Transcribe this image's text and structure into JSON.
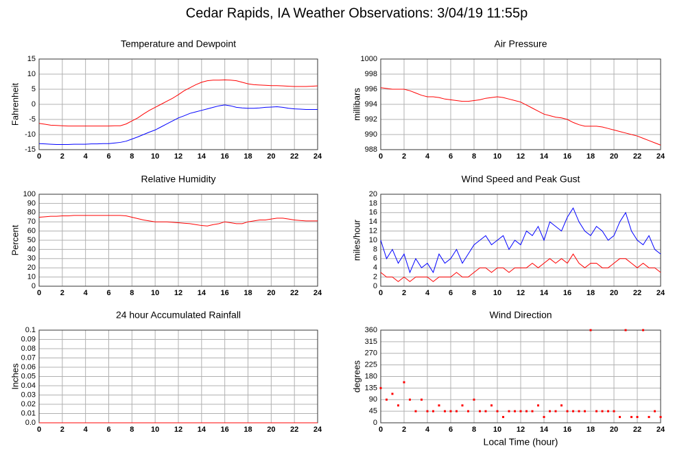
{
  "title": "Cedar Rapids, IA Weather Observations: 3/04/19 11:55p",
  "chart_data": [
    {
      "type": "line",
      "title": "Temperature and Dewpoint",
      "y_label": "Fahrenheit",
      "x": [
        0,
        0.5,
        1,
        1.5,
        2,
        2.5,
        3,
        3.5,
        4,
        4.5,
        5,
        5.5,
        6,
        6.5,
        7,
        7.5,
        8,
        8.5,
        9,
        9.5,
        10,
        10.5,
        11,
        11.5,
        12,
        12.5,
        13,
        13.5,
        14,
        14.5,
        15,
        15.5,
        16,
        16.5,
        17,
        17.5,
        18,
        18.5,
        19,
        19.5,
        20,
        20.5,
        21,
        21.5,
        22,
        22.5,
        23,
        23.5,
        24
      ],
      "series": [
        {
          "color": "#ff0000",
          "values": [
            -6.3,
            -6.6,
            -6.9,
            -7,
            -7.1,
            -7.2,
            -7.2,
            -7.2,
            -7.2,
            -7.2,
            -7.2,
            -7.2,
            -7.2,
            -7.1,
            -7.1,
            -6.5,
            -5.5,
            -4.5,
            -3.2,
            -2,
            -1,
            0,
            1,
            2,
            3.2,
            4.5,
            5.5,
            6.5,
            7.3,
            7.8,
            8,
            8,
            8.1,
            8,
            7.8,
            7.3,
            6.8,
            6.5,
            6.4,
            6.3,
            6.2,
            6.2,
            6.1,
            6,
            5.9,
            5.9,
            5.9,
            6,
            6.1
          ]
        },
        {
          "color": "#0000ff",
          "values": [
            -13,
            -13.1,
            -13.2,
            -13.3,
            -13.3,
            -13.3,
            -13.2,
            -13.2,
            -13.2,
            -13.1,
            -13.1,
            -13,
            -13,
            -12.8,
            -12.6,
            -12.2,
            -11.5,
            -10.8,
            -10,
            -9.2,
            -8.5,
            -7.5,
            -6.5,
            -5.5,
            -4.5,
            -3.8,
            -3,
            -2.5,
            -2,
            -1.5,
            -1,
            -0.5,
            -0.2,
            -0.5,
            -1,
            -1.2,
            -1.3,
            -1.3,
            -1.2,
            -1,
            -0.9,
            -0.8,
            -1,
            -1.3,
            -1.5,
            -1.6,
            -1.7,
            -1.7,
            -1.7
          ]
        }
      ],
      "xlim": [
        0,
        24
      ],
      "xticks": [
        0,
        2,
        4,
        6,
        8,
        10,
        12,
        14,
        16,
        18,
        20,
        22,
        24
      ],
      "ylim": [
        -15,
        15
      ],
      "yticks": [
        -15,
        -10,
        -5,
        0,
        5,
        10,
        15
      ],
      "grid": true
    },
    {
      "type": "line",
      "title": "Air Pressure",
      "y_label": "millibars",
      "x": [
        0,
        0.5,
        1,
        1.5,
        2,
        2.5,
        3,
        3.5,
        4,
        4.5,
        5,
        5.5,
        6,
        6.5,
        7,
        7.5,
        8,
        8.5,
        9,
        9.5,
        10,
        10.5,
        11,
        11.5,
        12,
        12.5,
        13,
        13.5,
        14,
        14.5,
        15,
        15.5,
        16,
        16.5,
        17,
        17.5,
        18,
        18.5,
        19,
        19.5,
        20,
        20.5,
        21,
        21.5,
        22,
        22.5,
        23,
        23.5,
        24
      ],
      "series": [
        {
          "color": "#ff0000",
          "values": [
            996.2,
            996.1,
            996,
            996,
            996,
            995.8,
            995.5,
            995.2,
            995,
            995,
            994.9,
            994.7,
            994.6,
            994.5,
            994.4,
            994.4,
            994.5,
            994.6,
            994.8,
            994.9,
            995,
            994.9,
            994.7,
            994.5,
            994.3,
            993.9,
            993.5,
            993.1,
            992.7,
            992.5,
            992.3,
            992.2,
            992,
            991.6,
            991.3,
            991.1,
            991.1,
            991.1,
            991,
            990.8,
            990.6,
            990.4,
            990.2,
            990,
            989.8,
            989.5,
            989.2,
            988.9,
            988.6
          ]
        }
      ],
      "xlim": [
        0,
        24
      ],
      "xticks": [
        0,
        2,
        4,
        6,
        8,
        10,
        12,
        14,
        16,
        18,
        20,
        22,
        24
      ],
      "ylim": [
        988,
        1000
      ],
      "yticks": [
        988,
        990,
        992,
        994,
        996,
        998,
        1000
      ],
      "grid": true
    },
    {
      "type": "line",
      "title": "Relative Humidity",
      "y_label": "Percent",
      "x": [
        0,
        0.5,
        1,
        1.5,
        2,
        2.5,
        3,
        3.5,
        4,
        4.5,
        5,
        5.5,
        6,
        6.5,
        7,
        7.5,
        8,
        8.5,
        9,
        9.5,
        10,
        10.5,
        11,
        11.5,
        12,
        12.5,
        13,
        13.5,
        14,
        14.5,
        15,
        15.5,
        16,
        16.5,
        17,
        17.5,
        18,
        18.5,
        19,
        19.5,
        20,
        20.5,
        21,
        21.5,
        22,
        22.5,
        23,
        23.5,
        24
      ],
      "series": [
        {
          "color": "#ff0000",
          "values": [
            75,
            75.5,
            76,
            76,
            76.5,
            76.5,
            77,
            77,
            77,
            77,
            77,
            77,
            77,
            77,
            77,
            76.5,
            75,
            73.5,
            72,
            71,
            70,
            70,
            70,
            69.5,
            69,
            68.5,
            68,
            67,
            66,
            65.5,
            67,
            68,
            70,
            69,
            68,
            68,
            70,
            71,
            72,
            72,
            73,
            74,
            74,
            73,
            72,
            71.5,
            71,
            71,
            71
          ]
        }
      ],
      "xlim": [
        0,
        24
      ],
      "xticks": [
        0,
        2,
        4,
        6,
        8,
        10,
        12,
        14,
        16,
        18,
        20,
        22,
        24
      ],
      "ylim": [
        0,
        100
      ],
      "yticks": [
        0,
        10,
        20,
        30,
        40,
        50,
        60,
        70,
        80,
        90,
        100
      ],
      "grid": true
    },
    {
      "type": "line",
      "title": "Wind Speed and Peak Gust",
      "y_label": "miles/hour",
      "x": [
        0,
        0.5,
        1,
        1.5,
        2,
        2.5,
        3,
        3.5,
        4,
        4.5,
        5,
        5.5,
        6,
        6.5,
        7,
        7.5,
        8,
        8.5,
        9,
        9.5,
        10,
        10.5,
        11,
        11.5,
        12,
        12.5,
        13,
        13.5,
        14,
        14.5,
        15,
        15.5,
        16,
        16.5,
        17,
        17.5,
        18,
        18.5,
        19,
        19.5,
        20,
        20.5,
        21,
        21.5,
        22,
        22.5,
        23,
        23.5,
        24
      ],
      "series": [
        {
          "color": "#0000ff",
          "values": [
            10,
            6,
            8,
            5,
            7,
            3,
            6,
            4,
            5,
            3,
            7,
            5,
            6,
            8,
            5,
            7,
            9,
            10,
            11,
            9,
            10,
            11,
            8,
            10,
            9,
            12,
            11,
            13,
            10,
            14,
            13,
            12,
            15,
            17,
            14,
            12,
            11,
            13,
            12,
            10,
            11,
            14,
            16,
            12,
            10,
            9,
            11,
            8,
            7
          ]
        },
        {
          "color": "#ff0000",
          "values": [
            3,
            2,
            2,
            1,
            2,
            1,
            2,
            2,
            2,
            1,
            2,
            2,
            2,
            3,
            2,
            2,
            3,
            4,
            4,
            3,
            4,
            4,
            3,
            4,
            4,
            4,
            5,
            4,
            5,
            6,
            5,
            6,
            5,
            7,
            5,
            4,
            5,
            5,
            4,
            4,
            5,
            6,
            6,
            5,
            4,
            5,
            4,
            4,
            3
          ]
        }
      ],
      "xlim": [
        0,
        24
      ],
      "xticks": [
        0,
        2,
        4,
        6,
        8,
        10,
        12,
        14,
        16,
        18,
        20,
        22,
        24
      ],
      "ylim": [
        0,
        20
      ],
      "yticks": [
        0,
        2,
        4,
        6,
        8,
        10,
        12,
        14,
        16,
        18,
        20
      ],
      "grid": true
    },
    {
      "type": "line",
      "title": "24 hour Accumulated Rainfall",
      "y_label": "Inches",
      "x": [
        0,
        24
      ],
      "series": [
        {
          "color": "#ff0000",
          "values": [
            0,
            0
          ]
        }
      ],
      "xlim": [
        0,
        24
      ],
      "xticks": [
        0,
        2,
        4,
        6,
        8,
        10,
        12,
        14,
        16,
        18,
        20,
        22,
        24
      ],
      "ylim": [
        0,
        0.1
      ],
      "yticks": [
        {
          "value": 0,
          "label": "0.0"
        },
        0.01,
        0.02,
        0.03,
        0.04,
        0.05,
        0.06,
        0.07,
        0.08,
        0.09,
        0.1
      ],
      "grid": true
    },
    {
      "type": "scatter",
      "title": "Wind Direction",
      "y_label": "degrees",
      "x_label": "Local Time (hour)",
      "x": [
        0,
        0.5,
        1,
        1.5,
        2,
        2.5,
        3,
        3.5,
        4,
        4.5,
        5,
        5.5,
        6,
        6.5,
        7,
        7.5,
        8,
        8.5,
        9,
        9.5,
        10,
        10.5,
        11,
        11.5,
        12,
        12.5,
        13,
        13.5,
        14,
        14.5,
        15,
        15.5,
        16,
        16.5,
        17,
        17.5,
        18,
        18.5,
        19,
        19.5,
        20,
        20.5,
        21,
        21.5,
        22,
        22.5,
        23,
        23.5,
        24
      ],
      "series": [
        {
          "color": "#ff0000",
          "values": [
            135,
            90,
            112.5,
            67.5,
            157.5,
            90,
            45,
            90,
            45,
            45,
            67.5,
            45,
            45,
            45,
            67.5,
            45,
            90,
            45,
            45,
            67.5,
            45,
            22.5,
            45,
            45,
            45,
            45,
            45,
            67.5,
            22.5,
            45,
            45,
            67.5,
            45,
            45,
            45,
            45,
            360,
            45,
            45,
            45,
            45,
            22.5,
            360,
            22.5,
            22.5,
            360,
            22.5,
            45,
            22.5
          ]
        }
      ],
      "xlim": [
        0,
        24
      ],
      "xticks": [
        0,
        2,
        4,
        6,
        8,
        10,
        12,
        14,
        16,
        18,
        20,
        22,
        24
      ],
      "ylim": [
        0,
        360
      ],
      "yticks": [
        0,
        45,
        90,
        135,
        180,
        225,
        270,
        315,
        360
      ],
      "grid": true
    }
  ]
}
